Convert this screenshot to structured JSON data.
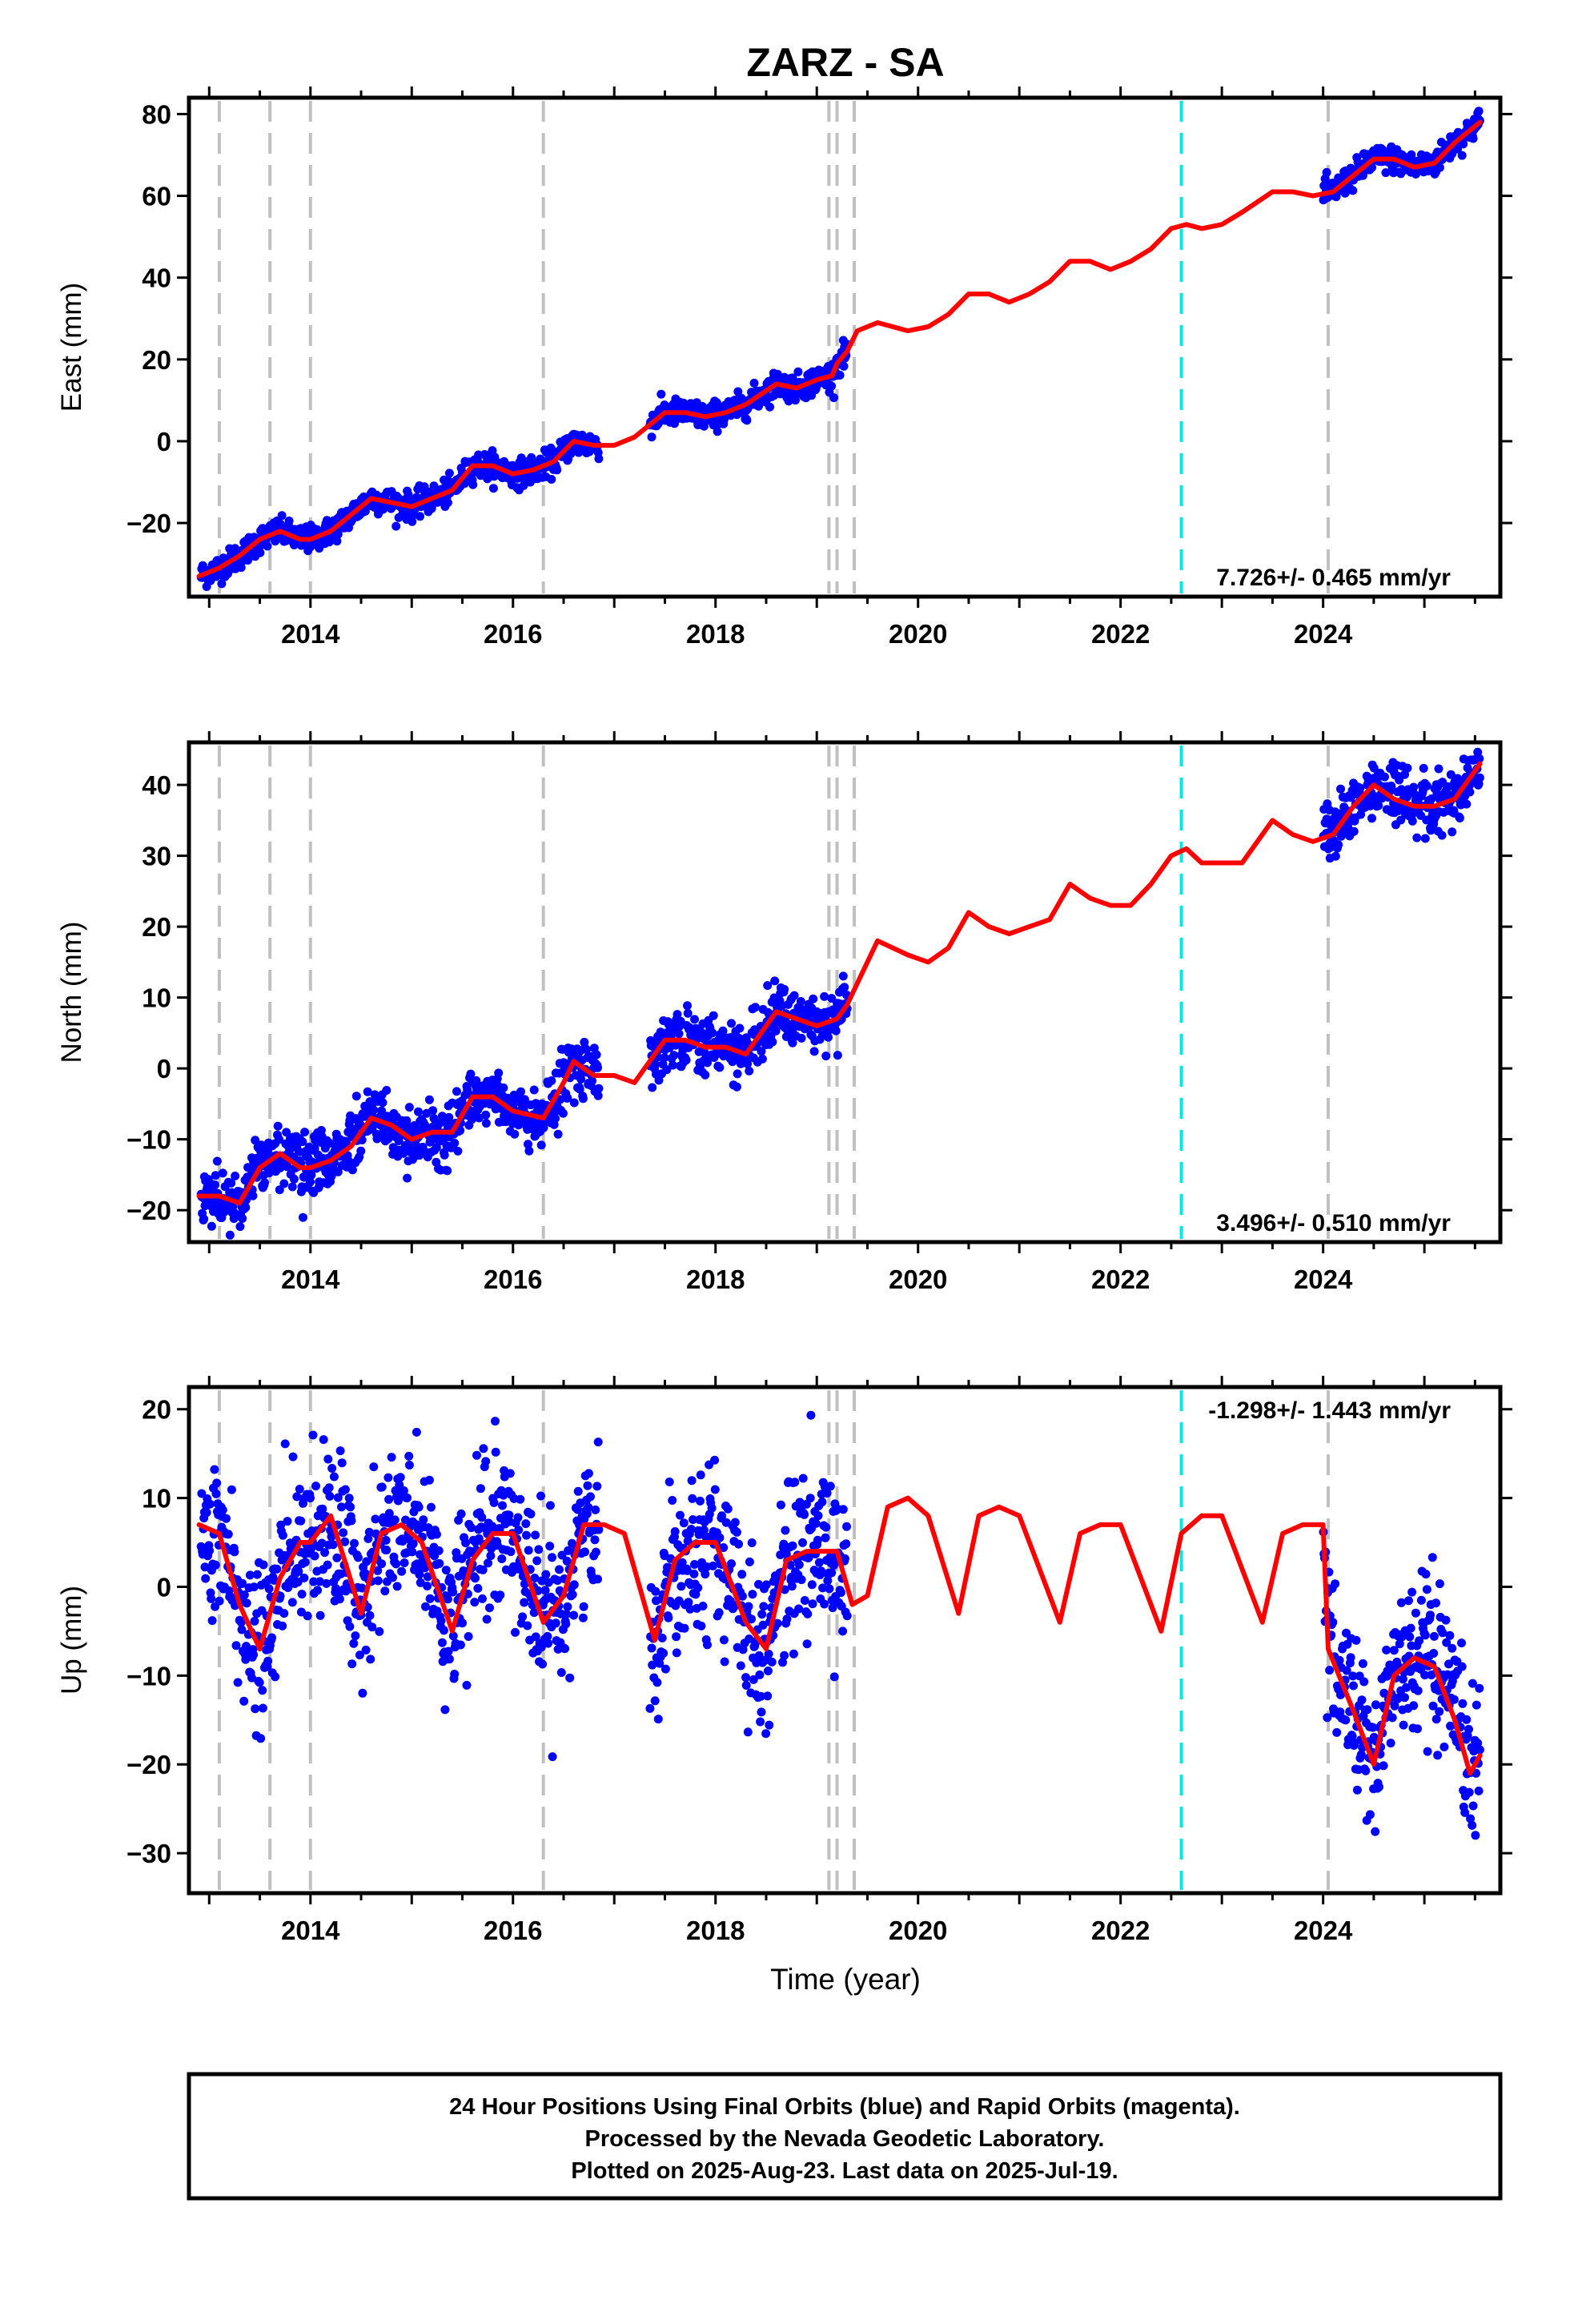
{
  "chart_data": {
    "type": "scatter",
    "title": "ZARZ - SA",
    "xlabel": "Time (year)",
    "xlim": [
      2012.8,
      2025.75
    ],
    "x_ticks": [
      2014,
      2016,
      2018,
      2020,
      2022,
      2024
    ],
    "x_tick_labels": [
      "2014",
      "2016",
      "2018",
      "2020",
      "2022",
      "2024"
    ],
    "grid": false,
    "legend": "none",
    "colors": {
      "data": "#0000ff",
      "model": "#ff0000",
      "event_line": "#c0c0c0",
      "equipment_line": "#00e5e5"
    },
    "event_lines": [
      2013.1,
      2013.6,
      2014.0,
      2016.3,
      2019.12,
      2019.2,
      2019.37,
      2024.05
    ],
    "equipment_lines": [
      2022.6
    ],
    "data_gap": [
      2019.3,
      2024.0
    ],
    "panels": [
      {
        "ylabel": "East (mm)",
        "ylim": [
          -38,
          84
        ],
        "y_ticks": [
          -20,
          0,
          20,
          40,
          60,
          80
        ],
        "y_tick_labels": [
          "−20",
          "0",
          "20",
          "40",
          "60",
          "80"
        ],
        "rate_label": "7.726+/- 0.465 mm/yr",
        "rate_position": "bottom-right",
        "model": [
          [
            2012.9,
            -33
          ],
          [
            2013.1,
            -31
          ],
          [
            2013.3,
            -28
          ],
          [
            2013.5,
            -24
          ],
          [
            2013.7,
            -22
          ],
          [
            2013.9,
            -24
          ],
          [
            2014.0,
            -24
          ],
          [
            2014.2,
            -22
          ],
          [
            2014.4,
            -18
          ],
          [
            2014.6,
            -14
          ],
          [
            2014.8,
            -15
          ],
          [
            2015.0,
            -16
          ],
          [
            2015.2,
            -14
          ],
          [
            2015.4,
            -12
          ],
          [
            2015.6,
            -6
          ],
          [
            2015.8,
            -6
          ],
          [
            2016.0,
            -8
          ],
          [
            2016.2,
            -7
          ],
          [
            2016.4,
            -5
          ],
          [
            2016.6,
            0
          ],
          [
            2016.8,
            -1
          ],
          [
            2017.0,
            -1
          ],
          [
            2017.2,
            1
          ],
          [
            2017.5,
            7
          ],
          [
            2017.7,
            7
          ],
          [
            2017.9,
            6
          ],
          [
            2018.1,
            7
          ],
          [
            2018.3,
            9
          ],
          [
            2018.6,
            14
          ],
          [
            2018.8,
            13
          ],
          [
            2019.0,
            15
          ],
          [
            2019.15,
            16
          ],
          [
            2019.2,
            19
          ],
          [
            2019.3,
            22
          ],
          [
            2019.4,
            27
          ],
          [
            2019.6,
            29
          ],
          [
            2019.9,
            27
          ],
          [
            2020.1,
            28
          ],
          [
            2020.3,
            31
          ],
          [
            2020.5,
            36
          ],
          [
            2020.7,
            36
          ],
          [
            2020.9,
            34
          ],
          [
            2021.1,
            36
          ],
          [
            2021.3,
            39
          ],
          [
            2021.5,
            44
          ],
          [
            2021.7,
            44
          ],
          [
            2021.9,
            42
          ],
          [
            2022.1,
            44
          ],
          [
            2022.3,
            47
          ],
          [
            2022.5,
            52
          ],
          [
            2022.65,
            53
          ],
          [
            2022.8,
            52
          ],
          [
            2023.0,
            53
          ],
          [
            2023.2,
            56
          ],
          [
            2023.5,
            61
          ],
          [
            2023.7,
            61
          ],
          [
            2023.9,
            60
          ],
          [
            2024.1,
            61
          ],
          [
            2024.3,
            65
          ],
          [
            2024.5,
            69
          ],
          [
            2024.7,
            69
          ],
          [
            2024.9,
            67
          ],
          [
            2025.1,
            68
          ],
          [
            2025.3,
            73
          ],
          [
            2025.55,
            78
          ]
        ]
      },
      {
        "ylabel": "North (mm)",
        "ylim": [
          -24.5,
          46
        ],
        "y_ticks": [
          -20,
          -10,
          0,
          10,
          20,
          30,
          40
        ],
        "y_tick_labels": [
          "−20",
          "−10",
          "0",
          "10",
          "20",
          "30",
          "40"
        ],
        "rate_label": "3.496+/- 0.510 mm/yr",
        "rate_position": "bottom-right",
        "model": [
          [
            2012.9,
            -18
          ],
          [
            2013.1,
            -18
          ],
          [
            2013.3,
            -19
          ],
          [
            2013.5,
            -14
          ],
          [
            2013.7,
            -12
          ],
          [
            2013.9,
            -14
          ],
          [
            2014.0,
            -14
          ],
          [
            2014.2,
            -13
          ],
          [
            2014.4,
            -11
          ],
          [
            2014.6,
            -7
          ],
          [
            2014.8,
            -8
          ],
          [
            2015.0,
            -10
          ],
          [
            2015.2,
            -9
          ],
          [
            2015.4,
            -9
          ],
          [
            2015.6,
            -4
          ],
          [
            2015.8,
            -4
          ],
          [
            2016.0,
            -6
          ],
          [
            2016.3,
            -7
          ],
          [
            2016.5,
            -2
          ],
          [
            2016.6,
            1
          ],
          [
            2016.8,
            -1
          ],
          [
            2017.0,
            -1
          ],
          [
            2017.2,
            -2
          ],
          [
            2017.5,
            4
          ],
          [
            2017.7,
            4
          ],
          [
            2017.9,
            3
          ],
          [
            2018.1,
            3
          ],
          [
            2018.3,
            2
          ],
          [
            2018.6,
            8
          ],
          [
            2018.8,
            7
          ],
          [
            2019.0,
            6
          ],
          [
            2019.2,
            7
          ],
          [
            2019.3,
            9
          ],
          [
            2019.4,
            12
          ],
          [
            2019.6,
            18
          ],
          [
            2019.9,
            16
          ],
          [
            2020.1,
            15
          ],
          [
            2020.3,
            17
          ],
          [
            2020.5,
            22
          ],
          [
            2020.7,
            20
          ],
          [
            2020.9,
            19
          ],
          [
            2021.1,
            20
          ],
          [
            2021.3,
            21
          ],
          [
            2021.5,
            26
          ],
          [
            2021.7,
            24
          ],
          [
            2021.9,
            23
          ],
          [
            2022.1,
            23
          ],
          [
            2022.3,
            26
          ],
          [
            2022.5,
            30
          ],
          [
            2022.65,
            31
          ],
          [
            2022.8,
            29
          ],
          [
            2023.0,
            29
          ],
          [
            2023.2,
            29
          ],
          [
            2023.5,
            35
          ],
          [
            2023.7,
            33
          ],
          [
            2023.9,
            32
          ],
          [
            2024.1,
            33
          ],
          [
            2024.3,
            37
          ],
          [
            2024.5,
            40
          ],
          [
            2024.7,
            38
          ],
          [
            2024.9,
            37
          ],
          [
            2025.1,
            37
          ],
          [
            2025.3,
            38
          ],
          [
            2025.55,
            43
          ]
        ]
      },
      {
        "ylabel": "Up (mm)",
        "ylim": [
          -34.5,
          22.5
        ],
        "y_ticks": [
          -30,
          -20,
          -10,
          0,
          10,
          20
        ],
        "y_tick_labels": [
          "−30",
          "−20",
          "−10",
          "0",
          "10",
          "20"
        ],
        "rate_label": "-1.298+/- 1.443 mm/yr",
        "rate_position": "top-right",
        "model": [
          [
            2012.9,
            7
          ],
          [
            2013.1,
            6
          ],
          [
            2013.3,
            -2
          ],
          [
            2013.5,
            -7
          ],
          [
            2013.7,
            1
          ],
          [
            2013.9,
            5
          ],
          [
            2014.0,
            5
          ],
          [
            2014.2,
            8
          ],
          [
            2014.5,
            -3
          ],
          [
            2014.7,
            6
          ],
          [
            2014.9,
            7
          ],
          [
            2015.1,
            5
          ],
          [
            2015.4,
            -5
          ],
          [
            2015.6,
            3
          ],
          [
            2015.8,
            6
          ],
          [
            2016.0,
            6
          ],
          [
            2016.3,
            -4
          ],
          [
            2016.5,
            -1
          ],
          [
            2016.7,
            7
          ],
          [
            2016.9,
            7
          ],
          [
            2017.1,
            6
          ],
          [
            2017.4,
            -6
          ],
          [
            2017.6,
            3
          ],
          [
            2017.8,
            5
          ],
          [
            2018.0,
            5
          ],
          [
            2018.3,
            -4
          ],
          [
            2018.5,
            -7
          ],
          [
            2018.7,
            3
          ],
          [
            2018.9,
            4
          ],
          [
            2019.2,
            4
          ],
          [
            2019.35,
            -2
          ],
          [
            2019.5,
            -1
          ],
          [
            2019.7,
            9
          ],
          [
            2019.9,
            10
          ],
          [
            2020.1,
            8
          ],
          [
            2020.4,
            -3
          ],
          [
            2020.6,
            8
          ],
          [
            2020.8,
            9
          ],
          [
            2021.0,
            8
          ],
          [
            2021.4,
            -4
          ],
          [
            2021.6,
            6
          ],
          [
            2021.8,
            7
          ],
          [
            2022.0,
            7
          ],
          [
            2022.4,
            -5
          ],
          [
            2022.6,
            6
          ],
          [
            2022.8,
            8
          ],
          [
            2023.0,
            8
          ],
          [
            2023.4,
            -4
          ],
          [
            2023.6,
            6
          ],
          [
            2023.8,
            7
          ],
          [
            2024.0,
            7
          ],
          [
            2024.05,
            -7
          ],
          [
            2024.3,
            -14
          ],
          [
            2024.5,
            -20
          ],
          [
            2024.7,
            -10
          ],
          [
            2024.9,
            -8
          ],
          [
            2025.1,
            -9
          ],
          [
            2025.3,
            -15
          ],
          [
            2025.45,
            -21
          ],
          [
            2025.55,
            -19
          ]
        ]
      }
    ]
  },
  "footer": {
    "line1": "24 Hour Positions Using Final Orbits (blue) and Rapid Orbits (magenta).",
    "line2": "Processed by the Nevada Geodetic Laboratory.",
    "line3": "Plotted on 2025-Aug-23. Last data on 2025-Jul-19."
  }
}
